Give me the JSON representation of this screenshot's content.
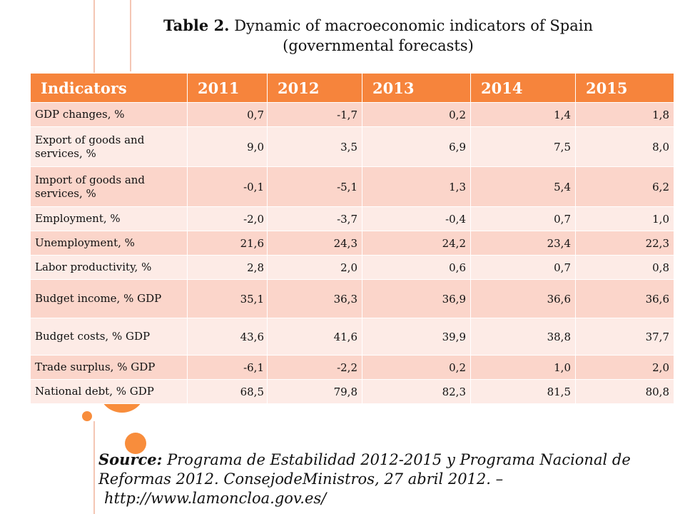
{
  "title": {
    "label": "Table 2.",
    "text": "Dynamic of macroeconomic indicators of Spain (governmental forecasts)"
  },
  "table": {
    "headers": [
      "Indicators",
      "2011",
      "2012",
      "2013",
      "2014",
      "2015"
    ],
    "rows": [
      [
        "GDP changes, %",
        "0,7",
        "-1,7",
        "0,2",
        "1,4",
        "1,8"
      ],
      [
        "Export of goods and services, %",
        "9,0",
        "3,5",
        "6,9",
        "7,5",
        "8,0"
      ],
      [
        "Import of goods and services, %",
        "-0,1",
        "-5,1",
        "1,3",
        "5,4",
        "6,2"
      ],
      [
        "Employment, %",
        "-2,0",
        "-3,7",
        "-0,4",
        "0,7",
        "1,0"
      ],
      [
        "Unemployment, %",
        "21,6",
        "24,3",
        "24,2",
        "23,4",
        "22,3"
      ],
      [
        "Labor productivity, %",
        "2,8",
        "2,0",
        "0,6",
        "0,7",
        "0,8"
      ],
      [
        "Budget income, % GDP",
        "35,1",
        "36,3",
        "36,9",
        "36,6",
        "36,6"
      ],
      [
        "Budget costs, % GDP",
        "43,6",
        "41,6",
        "39,9",
        "38,8",
        "37,7"
      ],
      [
        "Trade surplus, % GDP",
        "-6,1",
        "-2,2",
        "0,2",
        "1,0",
        "2,0"
      ],
      [
        "National debt, % GDP",
        "68,5",
        "79,8",
        "82,3",
        "81,5",
        "80,8"
      ]
    ]
  },
  "source": {
    "label": "Source:",
    "text": "Programa de Estabilidad 2012-2015 y Programa Nacional de Reformas 2012. ConsejodeMinistros, 27 abril 2012. –",
    "url": "http://www.lamoncloa.gov.es/"
  },
  "colors": {
    "header_bg": "#f6843c",
    "row_dark": "#fbd5ca",
    "row_light": "#fdebe6",
    "accent_dot": "#f88d3c"
  }
}
